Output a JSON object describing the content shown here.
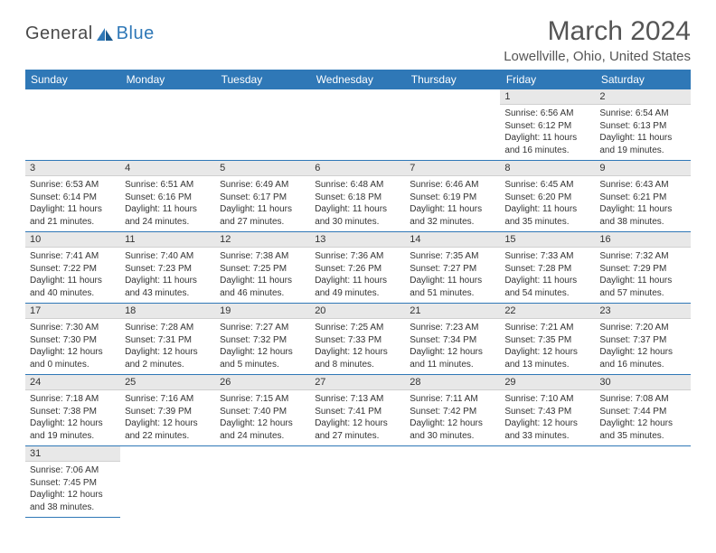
{
  "logo": {
    "text_general": "General",
    "text_blue": "Blue"
  },
  "title": "March 2024",
  "location": "Lowellville, Ohio, United States",
  "colors": {
    "header_bg": "#2f78b7",
    "header_text": "#ffffff",
    "day_num_bg": "#e8e8e8",
    "border": "#2f78b7",
    "text": "#333333",
    "background": "#ffffff"
  },
  "typography": {
    "title_fontsize": 30,
    "location_fontsize": 15,
    "header_fontsize": 12,
    "daynum_fontsize": 11,
    "content_fontsize": 10
  },
  "day_headers": [
    "Sunday",
    "Monday",
    "Tuesday",
    "Wednesday",
    "Thursday",
    "Friday",
    "Saturday"
  ],
  "weeks": [
    [
      null,
      null,
      null,
      null,
      null,
      {
        "num": "1",
        "sunrise": "6:56 AM",
        "sunset": "6:12 PM",
        "daylight": "11 hours and 16 minutes."
      },
      {
        "num": "2",
        "sunrise": "6:54 AM",
        "sunset": "6:13 PM",
        "daylight": "11 hours and 19 minutes."
      }
    ],
    [
      {
        "num": "3",
        "sunrise": "6:53 AM",
        "sunset": "6:14 PM",
        "daylight": "11 hours and 21 minutes."
      },
      {
        "num": "4",
        "sunrise": "6:51 AM",
        "sunset": "6:16 PM",
        "daylight": "11 hours and 24 minutes."
      },
      {
        "num": "5",
        "sunrise": "6:49 AM",
        "sunset": "6:17 PM",
        "daylight": "11 hours and 27 minutes."
      },
      {
        "num": "6",
        "sunrise": "6:48 AM",
        "sunset": "6:18 PM",
        "daylight": "11 hours and 30 minutes."
      },
      {
        "num": "7",
        "sunrise": "6:46 AM",
        "sunset": "6:19 PM",
        "daylight": "11 hours and 32 minutes."
      },
      {
        "num": "8",
        "sunrise": "6:45 AM",
        "sunset": "6:20 PM",
        "daylight": "11 hours and 35 minutes."
      },
      {
        "num": "9",
        "sunrise": "6:43 AM",
        "sunset": "6:21 PM",
        "daylight": "11 hours and 38 minutes."
      }
    ],
    [
      {
        "num": "10",
        "sunrise": "7:41 AM",
        "sunset": "7:22 PM",
        "daylight": "11 hours and 40 minutes."
      },
      {
        "num": "11",
        "sunrise": "7:40 AM",
        "sunset": "7:23 PM",
        "daylight": "11 hours and 43 minutes."
      },
      {
        "num": "12",
        "sunrise": "7:38 AM",
        "sunset": "7:25 PM",
        "daylight": "11 hours and 46 minutes."
      },
      {
        "num": "13",
        "sunrise": "7:36 AM",
        "sunset": "7:26 PM",
        "daylight": "11 hours and 49 minutes."
      },
      {
        "num": "14",
        "sunrise": "7:35 AM",
        "sunset": "7:27 PM",
        "daylight": "11 hours and 51 minutes."
      },
      {
        "num": "15",
        "sunrise": "7:33 AM",
        "sunset": "7:28 PM",
        "daylight": "11 hours and 54 minutes."
      },
      {
        "num": "16",
        "sunrise": "7:32 AM",
        "sunset": "7:29 PM",
        "daylight": "11 hours and 57 minutes."
      }
    ],
    [
      {
        "num": "17",
        "sunrise": "7:30 AM",
        "sunset": "7:30 PM",
        "daylight": "12 hours and 0 minutes."
      },
      {
        "num": "18",
        "sunrise": "7:28 AM",
        "sunset": "7:31 PM",
        "daylight": "12 hours and 2 minutes."
      },
      {
        "num": "19",
        "sunrise": "7:27 AM",
        "sunset": "7:32 PM",
        "daylight": "12 hours and 5 minutes."
      },
      {
        "num": "20",
        "sunrise": "7:25 AM",
        "sunset": "7:33 PM",
        "daylight": "12 hours and 8 minutes."
      },
      {
        "num": "21",
        "sunrise": "7:23 AM",
        "sunset": "7:34 PM",
        "daylight": "12 hours and 11 minutes."
      },
      {
        "num": "22",
        "sunrise": "7:21 AM",
        "sunset": "7:35 PM",
        "daylight": "12 hours and 13 minutes."
      },
      {
        "num": "23",
        "sunrise": "7:20 AM",
        "sunset": "7:37 PM",
        "daylight": "12 hours and 16 minutes."
      }
    ],
    [
      {
        "num": "24",
        "sunrise": "7:18 AM",
        "sunset": "7:38 PM",
        "daylight": "12 hours and 19 minutes."
      },
      {
        "num": "25",
        "sunrise": "7:16 AM",
        "sunset": "7:39 PM",
        "daylight": "12 hours and 22 minutes."
      },
      {
        "num": "26",
        "sunrise": "7:15 AM",
        "sunset": "7:40 PM",
        "daylight": "12 hours and 24 minutes."
      },
      {
        "num": "27",
        "sunrise": "7:13 AM",
        "sunset": "7:41 PM",
        "daylight": "12 hours and 27 minutes."
      },
      {
        "num": "28",
        "sunrise": "7:11 AM",
        "sunset": "7:42 PM",
        "daylight": "12 hours and 30 minutes."
      },
      {
        "num": "29",
        "sunrise": "7:10 AM",
        "sunset": "7:43 PM",
        "daylight": "12 hours and 33 minutes."
      },
      {
        "num": "30",
        "sunrise": "7:08 AM",
        "sunset": "7:44 PM",
        "daylight": "12 hours and 35 minutes."
      }
    ],
    [
      {
        "num": "31",
        "sunrise": "7:06 AM",
        "sunset": "7:45 PM",
        "daylight": "12 hours and 38 minutes."
      },
      null,
      null,
      null,
      null,
      null,
      null
    ]
  ],
  "labels": {
    "sunrise": "Sunrise:",
    "sunset": "Sunset:",
    "daylight": "Daylight:"
  }
}
